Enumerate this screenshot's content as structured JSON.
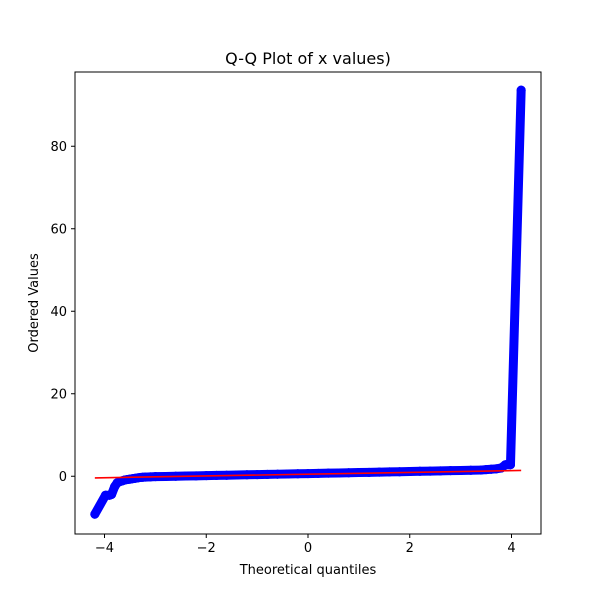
{
  "chart_data": {
    "type": "scatter",
    "title": "Q-Q Plot of x values)",
    "xlabel": "Theoretical quantiles",
    "ylabel": "Ordered Values",
    "xlim": [
      -4.58,
      4.58
    ],
    "ylim": [
      -14,
      98
    ],
    "xticks": [
      -4,
      -2,
      0,
      2,
      4
    ],
    "xtick_labels": [
      "−4",
      "−2",
      "0",
      "2",
      "4"
    ],
    "yticks": [
      0,
      20,
      40,
      60,
      80
    ],
    "ytick_labels": [
      "0",
      "20",
      "40",
      "60",
      "80"
    ],
    "grid": false,
    "legend": false,
    "colors": {
      "points": "#0000ff",
      "fit_line": "#ff0000"
    },
    "series": [
      {
        "kind": "points",
        "x": [
          -4.19,
          -3.98,
          -3.9,
          -3.86,
          -3.8,
          -3.75,
          -3.7,
          -3.65,
          -3.6,
          -3.55,
          -3.5,
          -3.45,
          -3.4,
          -3.35,
          -3.3,
          -3.25,
          -3.2,
          -3.1,
          -3.0,
          -2.8,
          -2.6,
          -2.4,
          -2.2,
          -2.0,
          -1.8,
          -1.6,
          -1.4,
          -1.2,
          -1.0,
          -0.8,
          -0.6,
          -0.4,
          -0.2,
          0.0,
          0.2,
          0.4,
          0.6,
          0.8,
          1.0,
          1.2,
          1.4,
          1.6,
          1.8,
          2.0,
          2.2,
          2.4,
          2.6,
          2.8,
          3.0,
          3.2,
          3.4,
          3.5,
          3.6,
          3.7,
          3.8,
          3.88,
          3.98,
          4.19
        ],
        "y": [
          -9.2,
          -4.6,
          -4.6,
          -4.4,
          -2.5,
          -1.6,
          -1.3,
          -1.1,
          -0.9,
          -0.8,
          -0.7,
          -0.6,
          -0.5,
          -0.4,
          -0.3,
          -0.25,
          -0.2,
          -0.15,
          -0.1,
          -0.05,
          0.0,
          0.05,
          0.1,
          0.15,
          0.2,
          0.25,
          0.3,
          0.35,
          0.4,
          0.45,
          0.5,
          0.55,
          0.6,
          0.65,
          0.7,
          0.75,
          0.8,
          0.85,
          0.9,
          0.95,
          1.0,
          1.05,
          1.1,
          1.15,
          1.2,
          1.25,
          1.3,
          1.35,
          1.4,
          1.45,
          1.5,
          1.6,
          1.7,
          1.8,
          2.0,
          2.8,
          2.8,
          93.6
        ]
      },
      {
        "kind": "line",
        "x": [
          -4.19,
          4.19
        ],
        "y": [
          -0.4,
          1.4
        ]
      }
    ]
  }
}
